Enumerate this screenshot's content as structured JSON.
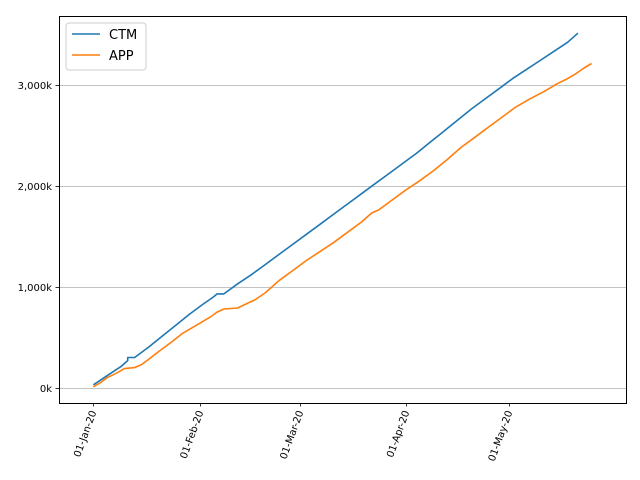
{
  "chart_data": {
    "type": "line",
    "title": "",
    "xlabel": "",
    "ylabel": "",
    "x_range": [
      "2019-12-22",
      "2020-06-04"
    ],
    "ylim": [
      -150,
      3680
    ],
    "grid": {
      "x": false,
      "y": true
    },
    "legend": {
      "placement": "top-left"
    },
    "x_ticks": [
      {
        "date": "2020-01-01",
        "label": "01-Jan-20"
      },
      {
        "date": "2020-02-01",
        "label": "01-Feb-20"
      },
      {
        "date": "2020-03-01",
        "label": "01-Mar-20"
      },
      {
        "date": "2020-04-01",
        "label": "01-Apr-20"
      },
      {
        "date": "2020-05-01",
        "label": "01-May-20"
      }
    ],
    "y_ticks": [
      {
        "value": 0,
        "label": "0k"
      },
      {
        "value": 1000,
        "label": "1,000k"
      },
      {
        "value": 2000,
        "label": "2,000k"
      },
      {
        "value": 3000,
        "label": "3,000k"
      }
    ],
    "series": [
      {
        "name": "CTM",
        "color": "#1f77b4",
        "points": [
          [
            "2020-01-01",
            30
          ],
          [
            "2020-01-05",
            120
          ],
          [
            "2020-01-09",
            210
          ],
          [
            "2020-01-10",
            240
          ],
          [
            "2020-01-11",
            270
          ],
          [
            "2020-01-11",
            300
          ],
          [
            "2020-01-13",
            300
          ],
          [
            "2020-01-17",
            400
          ],
          [
            "2020-01-21",
            510
          ],
          [
            "2020-01-25",
            620
          ],
          [
            "2020-01-29",
            730
          ],
          [
            "2020-02-02",
            830
          ],
          [
            "2020-02-05",
            900
          ],
          [
            "2020-02-06",
            930
          ],
          [
            "2020-02-08",
            930
          ],
          [
            "2020-02-12",
            1030
          ],
          [
            "2020-02-16",
            1120
          ],
          [
            "2020-02-20",
            1220
          ],
          [
            "2020-02-24",
            1320
          ],
          [
            "2020-02-28",
            1420
          ],
          [
            "2020-03-03",
            1520
          ],
          [
            "2020-03-07",
            1620
          ],
          [
            "2020-03-11",
            1720
          ],
          [
            "2020-03-15",
            1820
          ],
          [
            "2020-03-19",
            1920
          ],
          [
            "2020-03-23",
            2020
          ],
          [
            "2020-03-27",
            2120
          ],
          [
            "2020-03-31",
            2220
          ],
          [
            "2020-04-04",
            2320
          ],
          [
            "2020-04-08",
            2430
          ],
          [
            "2020-04-12",
            2540
          ],
          [
            "2020-04-16",
            2650
          ],
          [
            "2020-04-20",
            2760
          ],
          [
            "2020-04-24",
            2860
          ],
          [
            "2020-04-28",
            2960
          ],
          [
            "2020-05-02",
            3060
          ],
          [
            "2020-05-06",
            3150
          ],
          [
            "2020-05-10",
            3240
          ],
          [
            "2020-05-14",
            3330
          ],
          [
            "2020-05-18",
            3420
          ],
          [
            "2020-05-21",
            3510
          ]
        ]
      },
      {
        "name": "APP",
        "color": "#ff7f0e",
        "points": [
          [
            "2020-01-01",
            10
          ],
          [
            "2020-01-03",
            50
          ],
          [
            "2020-01-05",
            100
          ],
          [
            "2020-01-08",
            150
          ],
          [
            "2020-01-10",
            190
          ],
          [
            "2020-01-13",
            200
          ],
          [
            "2020-01-15",
            230
          ],
          [
            "2020-01-17",
            280
          ],
          [
            "2020-01-20",
            360
          ],
          [
            "2020-01-24",
            460
          ],
          [
            "2020-01-27",
            540
          ],
          [
            "2020-01-31",
            620
          ],
          [
            "2020-02-04",
            700
          ],
          [
            "2020-02-06",
            750
          ],
          [
            "2020-02-08",
            780
          ],
          [
            "2020-02-12",
            790
          ],
          [
            "2020-02-15",
            840
          ],
          [
            "2020-02-17",
            870
          ],
          [
            "2020-02-20",
            940
          ],
          [
            "2020-02-24",
            1060
          ],
          [
            "2020-02-28",
            1160
          ],
          [
            "2020-03-03",
            1260
          ],
          [
            "2020-03-07",
            1350
          ],
          [
            "2020-03-11",
            1440
          ],
          [
            "2020-03-15",
            1540
          ],
          [
            "2020-03-19",
            1640
          ],
          [
            "2020-03-22",
            1730
          ],
          [
            "2020-03-24",
            1760
          ],
          [
            "2020-03-28",
            1860
          ],
          [
            "2020-04-01",
            1960
          ],
          [
            "2020-04-05",
            2050
          ],
          [
            "2020-04-09",
            2150
          ],
          [
            "2020-04-13",
            2260
          ],
          [
            "2020-04-17",
            2380
          ],
          [
            "2020-04-21",
            2480
          ],
          [
            "2020-04-25",
            2580
          ],
          [
            "2020-04-29",
            2680
          ],
          [
            "2020-05-03",
            2780
          ],
          [
            "2020-05-07",
            2860
          ],
          [
            "2020-05-11",
            2930
          ],
          [
            "2020-05-15",
            3010
          ],
          [
            "2020-05-18",
            3060
          ],
          [
            "2020-05-20",
            3100
          ],
          [
            "2020-05-23",
            3170
          ],
          [
            "2020-05-25",
            3210
          ]
        ]
      }
    ]
  }
}
